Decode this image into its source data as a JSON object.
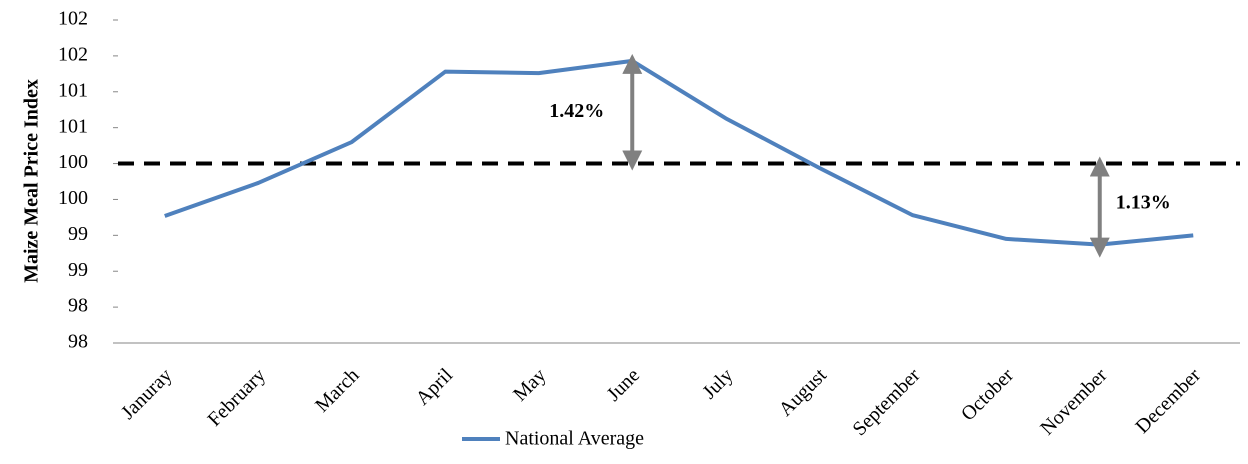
{
  "chart_data": {
    "type": "line",
    "y_label": "Maize Meal Price Index",
    "categories": [
      "Januray",
      "February",
      "March",
      "April",
      "May",
      "June",
      "July",
      "August",
      "September",
      "October",
      "November",
      "December"
    ],
    "series": [
      {
        "name": "National Average",
        "color": "#4f81bd",
        "values": [
          99.27,
          99.73,
          100.3,
          101.28,
          101.26,
          101.43,
          100.63,
          99.94,
          99.28,
          98.95,
          98.87,
          99.0
        ]
      }
    ],
    "reference_line": 100,
    "annotations": [
      "1.42%",
      "1.13%"
    ],
    "ylim": [
      97.5,
      102.25
    ],
    "yticks": [
      {
        "value": 97.5,
        "label": "98"
      },
      {
        "value": 98,
        "label": "98"
      },
      {
        "value": 98.5,
        "label": "99"
      },
      {
        "value": 99,
        "label": "99"
      },
      {
        "value": 99.5,
        "label": "100"
      },
      {
        "value": 100,
        "label": "100"
      },
      {
        "value": 100.5,
        "label": "101"
      },
      {
        "value": 101,
        "label": "101"
      },
      {
        "value": 101.5,
        "label": "102"
      },
      {
        "value": 102,
        "label": "102"
      }
    ],
    "grid": false,
    "legend": "bottom"
  }
}
